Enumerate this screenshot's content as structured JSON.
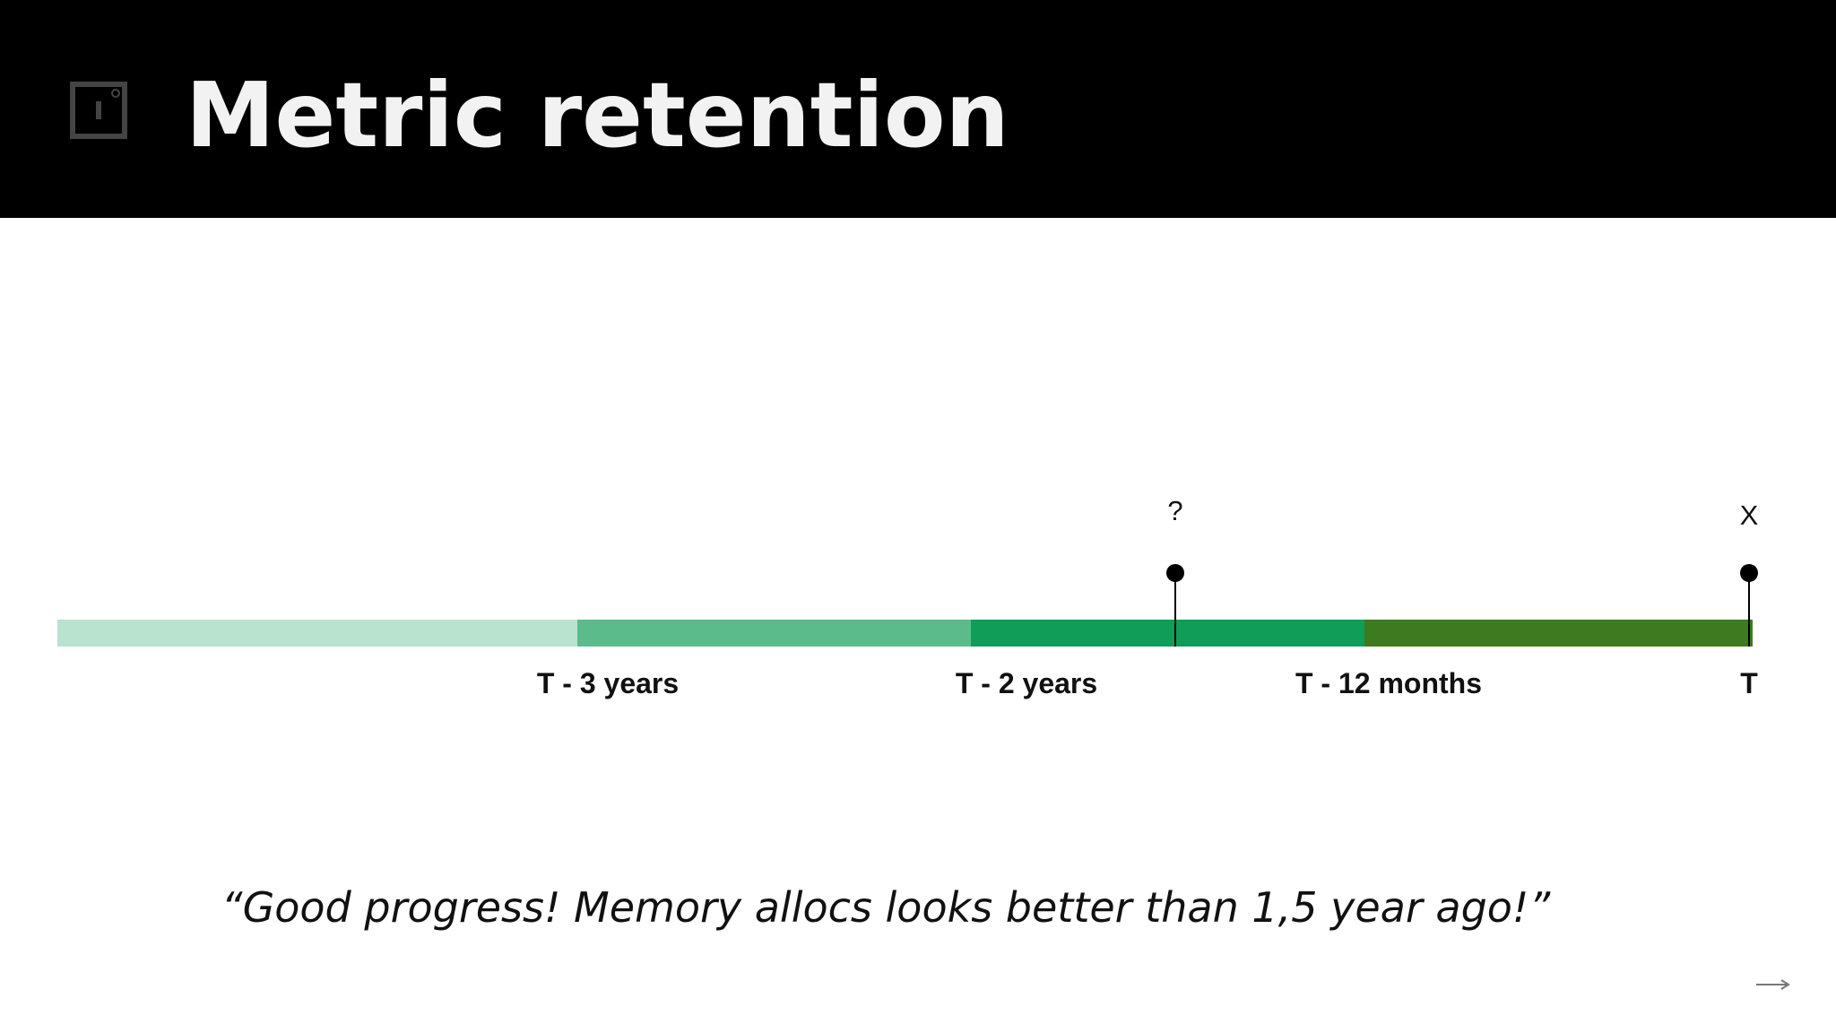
{
  "header": {
    "title": "Metric retention"
  },
  "timeline": {
    "markers": [
      "?",
      "X"
    ],
    "labels": [
      "T - 3 years",
      "T - 2 years",
      "T - 12 months",
      "T"
    ]
  },
  "quote": "“Good progress! Memory allocs looks better than 1,5 year ago!”"
}
